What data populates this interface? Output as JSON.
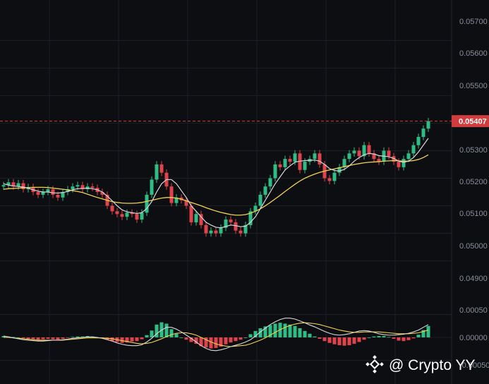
{
  "colors": {
    "background": "#0c0e12",
    "grid": "#1c1f26",
    "up": "#2ebd85",
    "down": "#e0434b",
    "ma_fast": "#d8d8d8",
    "ma_slow": "#f2d347",
    "price_tag": "#d23c3f"
  },
  "price_axis": {
    "labels": [
      "0.05700",
      "0.05600",
      "0.05500",
      "0.05300",
      "0.05200",
      "0.05100",
      "0.05000",
      "0.04900"
    ]
  },
  "current_price": "0.05407",
  "macd_axis": {
    "labels": [
      "0.00050",
      "0.00000",
      "-0.00050"
    ]
  },
  "watermark": {
    "icon": "binance-logo-icon",
    "text": "@ Crypto YY"
  },
  "chart_data": {
    "type": "candlestick",
    "ylim": [
      0.0484,
      0.0577
    ],
    "current_price": 0.05407,
    "close": [
      0.05175,
      0.05185,
      0.0517,
      0.05182,
      0.0516,
      0.05168,
      0.0515,
      0.0514,
      0.0515,
      0.0516,
      0.0514,
      0.0513,
      0.0515,
      0.0516,
      0.0517,
      0.05175,
      0.0516,
      0.0517,
      0.05165,
      0.0515,
      0.0514,
      0.051,
      0.0508,
      0.0507,
      0.0506,
      0.05075,
      0.0507,
      0.0505,
      0.05075,
      0.0514,
      0.05195,
      0.0525,
      0.0522,
      0.0517,
      0.0511,
      0.0513,
      0.0512,
      0.051,
      0.0504,
      0.0507,
      0.0503,
      0.05,
      0.0501,
      0.05,
      0.0502,
      0.0505,
      0.0504,
      0.0501,
      0.05,
      0.0503,
      0.0508,
      0.051,
      0.0514,
      0.0517,
      0.052,
      0.0525,
      0.0524,
      0.0527,
      0.0526,
      0.0529,
      0.0523,
      0.0526,
      0.0527,
      0.0529,
      0.0525,
      0.052,
      0.0519,
      0.0522,
      0.0524,
      0.0527,
      0.0529,
      0.053,
      0.0528,
      0.0532,
      0.0529,
      0.0527,
      0.0526,
      0.053,
      0.0528,
      0.0526,
      0.0524,
      0.0527,
      0.0529,
      0.0532,
      0.0535,
      0.0538,
      0.05407
    ],
    "ma_fast": [
      0.0518,
      0.05175,
      0.05172,
      0.0517,
      0.05168,
      0.05164,
      0.05158,
      0.05153,
      0.0515,
      0.0515,
      0.05147,
      0.05146,
      0.05148,
      0.05152,
      0.05158,
      0.05162,
      0.05163,
      0.05164,
      0.05162,
      0.05158,
      0.0515,
      0.05135,
      0.05118,
      0.051,
      0.05085,
      0.05078,
      0.05075,
      0.05072,
      0.05075,
      0.0509,
      0.05115,
      0.0515,
      0.0518,
      0.05195,
      0.05195,
      0.0518,
      0.05155,
      0.0513,
      0.051,
      0.0508,
      0.0506,
      0.0504,
      0.0503,
      0.05022,
      0.0502,
      0.05025,
      0.0503,
      0.05028,
      0.05024,
      0.05026,
      0.0504,
      0.0506,
      0.0509,
      0.0512,
      0.0515,
      0.0518,
      0.05205,
      0.0523,
      0.05245,
      0.05258,
      0.05262,
      0.05264,
      0.05265,
      0.05266,
      0.05262,
      0.0525,
      0.05235,
      0.05228,
      0.05226,
      0.05232,
      0.05245,
      0.05262,
      0.05275,
      0.05285,
      0.0529,
      0.05288,
      0.05282,
      0.0528,
      0.05278,
      0.05272,
      0.05262,
      0.05258,
      0.05262,
      0.05275,
      0.05295,
      0.0532,
      0.05345
    ],
    "ma_slow": [
      0.0516,
      0.05162,
      0.05163,
      0.05164,
      0.05165,
      0.05166,
      0.05167,
      0.05167,
      0.05167,
      0.05166,
      0.05164,
      0.05162,
      0.0516,
      0.05158,
      0.05155,
      0.05152,
      0.05148,
      0.05142,
      0.05136,
      0.0513,
      0.05125,
      0.0512,
      0.05115,
      0.05112,
      0.0511,
      0.05109,
      0.05109,
      0.0511,
      0.05112,
      0.05116,
      0.0512,
      0.05124,
      0.05128,
      0.0513,
      0.0513,
      0.05128,
      0.05124,
      0.05118,
      0.05112,
      0.05106,
      0.051,
      0.05093,
      0.05087,
      0.05081,
      0.05076,
      0.05072,
      0.05068,
      0.05066,
      0.05066,
      0.05068,
      0.05073,
      0.0508,
      0.05089,
      0.051,
      0.05112,
      0.05125,
      0.05138,
      0.05152,
      0.05165,
      0.05178,
      0.0519,
      0.052,
      0.05208,
      0.05215,
      0.05221,
      0.05226,
      0.0523,
      0.05234,
      0.05238,
      0.05242,
      0.05246,
      0.0525,
      0.05253,
      0.05256,
      0.05258,
      0.05259,
      0.0526,
      0.05262,
      0.05263,
      0.05264,
      0.05263,
      0.05262,
      0.05262,
      0.05264,
      0.05268,
      0.05275,
      0.05285
    ],
    "macd_ylim": [
      -0.0006,
      0.0006
    ],
    "macd_hist": [
      3e-05,
      2e-05,
      1e-05,
      0.0,
      -2e-05,
      -3e-05,
      -4e-05,
      -5e-05,
      -4e-05,
      -3e-05,
      -4e-05,
      -5e-05,
      -3e-05,
      -1e-05,
      1e-05,
      2e-05,
      2e-05,
      3e-05,
      2e-05,
      0.0,
      -2e-05,
      -5e-05,
      -8e-05,
      -0.0001,
      -0.00012,
      -0.00011,
      -9e-05,
      -8e-05,
      -4e-05,
      5e-05,
      0.00015,
      0.00028,
      0.00033,
      0.0003,
      0.00018,
      8e-05,
      0.0,
      -5e-05,
      -0.0001,
      -0.00014,
      -0.00019,
      -0.00022,
      -0.00024,
      -0.00023,
      -0.0002,
      -0.00015,
      -0.00011,
      -8e-05,
      -5e-05,
      0.0,
      7e-05,
      0.00014,
      0.0002,
      0.00024,
      0.00027,
      0.0003,
      0.00032,
      0.0003,
      0.00028,
      0.00025,
      0.0002,
      0.00014,
      8e-05,
      2e-05,
      -3e-05,
      -8e-05,
      -0.00012,
      -0.00015,
      -0.00017,
      -0.00018,
      -0.00017,
      -0.00014,
      -0.0001,
      -5e-05,
      0.0,
      2e-05,
      3e-05,
      3e-05,
      1e-05,
      -3e-05,
      -7e-05,
      -8e-05,
      -6e-05,
      -2e-05,
      6e-05,
      0.00016,
      0.00025
    ],
    "macd_line": [
      3e-05,
      1e-05,
      -1e-05,
      -3e-05,
      -5e-05,
      -6e-05,
      -7e-05,
      -8e-05,
      -8e-05,
      -7e-05,
      -6e-05,
      -6e-05,
      -5e-05,
      -4e-05,
      -2e-05,
      -1e-05,
      0.0,
      1e-05,
      1e-05,
      0.0,
      -2e-05,
      -5e-05,
      -8e-05,
      -0.00012,
      -0.00015,
      -0.00017,
      -0.00018,
      -0.00018,
      -0.00016,
      -0.0001,
      -2e-05,
      8e-05,
      0.00016,
      0.00022,
      0.00022,
      0.00018,
      0.00012,
      5e-05,
      -2e-05,
      -0.0001,
      -0.00018,
      -0.00024,
      -0.00028,
      -0.00029,
      -0.00027,
      -0.00024,
      -0.0002,
      -0.00017,
      -0.00014,
      -0.0001,
      -5e-05,
      3e-05,
      0.00012,
      0.0002,
      0.00028,
      0.00034,
      0.00039,
      0.00042,
      0.00042,
      0.0004,
      0.00036,
      0.00032,
      0.00027,
      0.00023,
      0.00018,
      0.00013,
      9e-05,
      6e-05,
      5e-05,
      6e-05,
      8e-05,
      0.00011,
      0.00014,
      0.00015,
      0.00014,
      0.00011,
      8e-05,
      6e-05,
      5e-05,
      5e-05,
      6e-05,
      7e-05,
      9e-05,
      0.00012,
      0.00016,
      0.00022,
      0.00028
    ],
    "macd_signal": [
      0.0,
      0.0,
      -1e-05,
      -2e-05,
      -3e-05,
      -4e-05,
      -5e-05,
      -6e-05,
      -6e-05,
      -6e-05,
      -6e-05,
      -6e-05,
      -6e-05,
      -5e-05,
      -4e-05,
      -3e-05,
      -2e-05,
      -1e-05,
      -1e-05,
      -1e-05,
      -1e-05,
      -2e-05,
      -3e-05,
      -5e-05,
      -7e-05,
      -9e-05,
      -0.00011,
      -0.00013,
      -0.00014,
      -0.00013,
      -0.00011,
      -7e-05,
      -3e-05,
      2e-05,
      6e-05,
      9e-05,
      0.0001,
      0.0001,
      8e-05,
      5e-05,
      0.0,
      -5e-05,
      -0.0001,
      -0.00014,
      -0.00017,
      -0.00019,
      -0.0002,
      -0.00019,
      -0.00018,
      -0.00017,
      -0.00014,
      -0.0001,
      -6e-05,
      -1e-05,
      5e-05,
      0.00011,
      0.00017,
      0.00022,
      0.00026,
      0.00029,
      0.00031,
      0.00032,
      0.00031,
      0.0003,
      0.00028,
      0.00025,
      0.00022,
      0.00019,
      0.00016,
      0.00014,
      0.00012,
      0.00011,
      0.00011,
      0.00012,
      0.00012,
      0.00012,
      0.00012,
      0.00011,
      0.0001,
      9e-05,
      8e-05,
      8e-05,
      8e-05,
      9e-05,
      0.0001,
      0.00013,
      0.00016
    ]
  }
}
